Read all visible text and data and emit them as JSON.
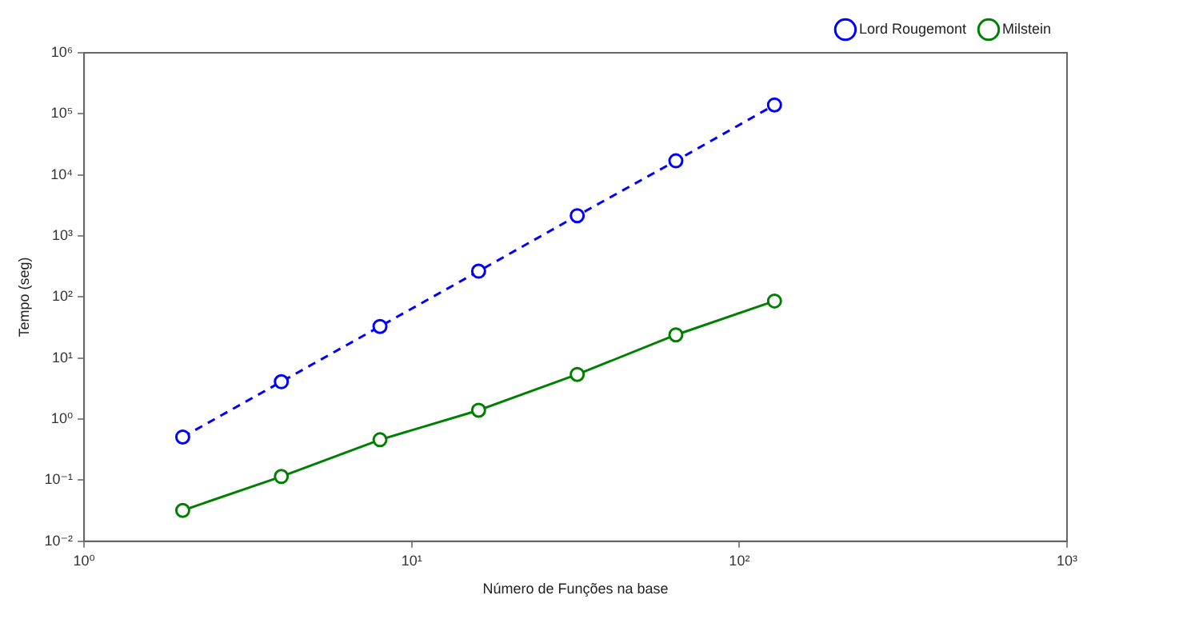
{
  "chart_data": {
    "type": "line",
    "xlabel": "Número de Funções na base",
    "ylabel": "Tempo (seg)",
    "log": "xy",
    "x": [
      2,
      4,
      8,
      16,
      32,
      64,
      128
    ],
    "xlim": [
      1,
      1000
    ],
    "xticks": [
      {
        "value": 1,
        "label": "10⁰"
      },
      {
        "value": 10,
        "label": "10¹"
      },
      {
        "value": 100,
        "label": "10²"
      },
      {
        "value": 1000,
        "label": "10³"
      }
    ],
    "ylim": [
      0.01,
      1000000
    ],
    "yticks": [
      {
        "value": 0.01,
        "label": "10⁻²"
      },
      {
        "value": 0.1,
        "label": "10⁻¹"
      },
      {
        "value": 1,
        "label": "10⁰"
      },
      {
        "value": 10,
        "label": "10¹"
      },
      {
        "value": 100,
        "label": "10²"
      },
      {
        "value": 1000,
        "label": "10³"
      },
      {
        "value": 10000,
        "label": "10⁴"
      },
      {
        "value": 100000,
        "label": "10⁵"
      },
      {
        "value": 1000000,
        "label": "10⁶"
      }
    ],
    "series": [
      {
        "name": "Lord Rougemont",
        "color": "#0000ff",
        "line_style": "dashed",
        "values": [
          0.51,
          4.1,
          33,
          265,
          2150,
          17000,
          140000
        ]
      },
      {
        "name": "Milstein",
        "color": "#008000",
        "line_style": "solid",
        "values": [
          0.032,
          0.115,
          0.46,
          1.4,
          5.4,
          24,
          86
        ]
      }
    ],
    "marker": "circle",
    "grid": false,
    "legend": "top right"
  }
}
